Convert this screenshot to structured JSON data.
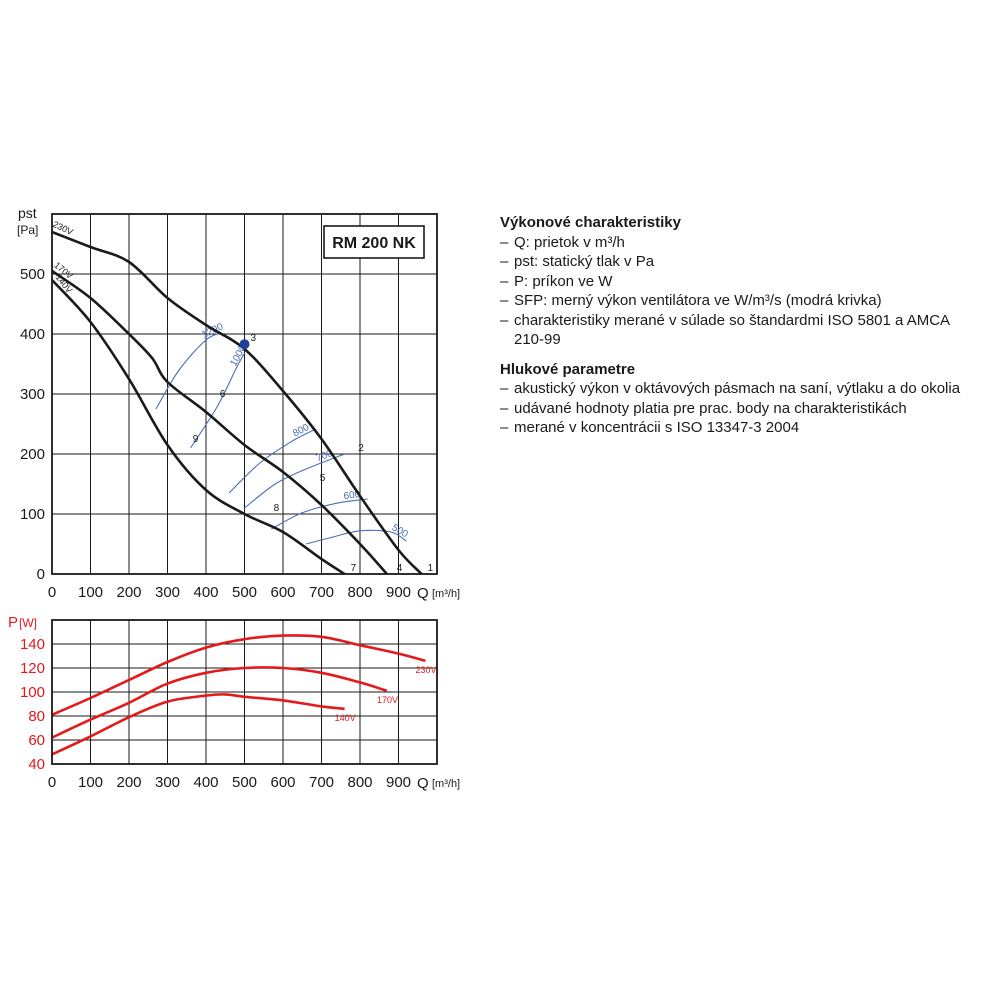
{
  "chart_data": [
    {
      "type": "line",
      "title": "RM 200 NK",
      "ylabel": "pst",
      "yunit": "[Pa]",
      "xlabel": "Q",
      "xunit": "[m³/h]",
      "xlim": [
        0,
        1000
      ],
      "ylim": [
        0,
        600
      ],
      "xticks": [
        "0",
        "100",
        "200",
        "300",
        "400",
        "500",
        "600",
        "700",
        "800",
        "900"
      ],
      "yticks": [
        "0",
        "100",
        "200",
        "300",
        "400",
        "500"
      ],
      "grid": true,
      "series": [
        {
          "name": "230V",
          "color": "#1a1a1a",
          "points": [
            [
              0,
              570
            ],
            [
              100,
              545
            ],
            [
              200,
              520
            ],
            [
              300,
              460
            ],
            [
              400,
              415
            ],
            [
              500,
              375
            ],
            [
              600,
              305
            ],
            [
              700,
              225
            ],
            [
              800,
              130
            ],
            [
              900,
              40
            ],
            [
              960,
              0
            ]
          ]
        },
        {
          "name": "170V",
          "color": "#1a1a1a",
          "points": [
            [
              0,
              505
            ],
            [
              100,
              460
            ],
            [
              200,
              400
            ],
            [
              260,
              360
            ],
            [
              300,
              320
            ],
            [
              400,
              270
            ],
            [
              500,
              215
            ],
            [
              600,
              170
            ],
            [
              700,
              115
            ],
            [
              800,
              50
            ],
            [
              870,
              0
            ]
          ]
        },
        {
          "name": "140V",
          "color": "#1a1a1a",
          "points": [
            [
              0,
              490
            ],
            [
              100,
              420
            ],
            [
              200,
              325
            ],
            [
              300,
              215
            ],
            [
              400,
              140
            ],
            [
              500,
              100
            ],
            [
              600,
              70
            ],
            [
              700,
              25
            ],
            [
              760,
              0
            ]
          ]
        }
      ],
      "sfp_curves": [
        {
          "label": "1200",
          "points": [
            [
              270,
              275
            ],
            [
              330,
              340
            ],
            [
              400,
              390
            ],
            [
              440,
              402
            ]
          ]
        },
        {
          "label": "1000",
          "points": [
            [
              360,
              210
            ],
            [
              430,
              280
            ],
            [
              480,
              345
            ],
            [
              500,
              368
            ]
          ]
        },
        {
          "label": "800",
          "points": [
            [
              460,
              135
            ],
            [
              540,
              185
            ],
            [
              620,
              220
            ],
            [
              680,
              240
            ]
          ]
        },
        {
          "label": "700",
          "points": [
            [
              500,
              110
            ],
            [
              580,
              150
            ],
            [
              660,
              175
            ],
            [
              760,
              200
            ]
          ]
        },
        {
          "label": "600",
          "points": [
            [
              570,
              75
            ],
            [
              650,
              102
            ],
            [
              740,
              118
            ],
            [
              820,
              125
            ]
          ]
        },
        {
          "label": "500",
          "points": [
            [
              660,
              50
            ],
            [
              720,
              60
            ],
            [
              800,
              72
            ],
            [
              880,
              70
            ],
            [
              920,
              55
            ]
          ]
        }
      ],
      "operating_points": [
        {
          "label": "1",
          "q": 960,
          "p": 0
        },
        {
          "label": "2",
          "q": 780,
          "p": 200
        },
        {
          "label": "3",
          "q": 500,
          "p": 383
        },
        {
          "label": "4",
          "q": 880,
          "p": 0
        },
        {
          "label": "5",
          "q": 680,
          "p": 150
        },
        {
          "label": "6",
          "q": 420,
          "p": 290
        },
        {
          "label": "7",
          "q": 760,
          "p": 0
        },
        {
          "label": "8",
          "q": 560,
          "p": 100
        },
        {
          "label": "9",
          "q": 350,
          "p": 215
        }
      ],
      "marker": {
        "label": "3",
        "q": 500,
        "p": 383,
        "color": "#1f3f9a"
      }
    },
    {
      "type": "line",
      "ylabel": "P",
      "yunit": "[W]",
      "xlabel": "Q",
      "xunit": "[m³/h]",
      "xlim": [
        0,
        1000
      ],
      "ylim": [
        40,
        160
      ],
      "xticks": [
        "0",
        "100",
        "200",
        "300",
        "400",
        "500",
        "600",
        "700",
        "800",
        "900"
      ],
      "yticks": [
        "40",
        "60",
        "80",
        "100",
        "120",
        "140"
      ],
      "grid": true,
      "series": [
        {
          "name": "230V",
          "color": "#e3191c",
          "points": [
            [
              0,
              81
            ],
            [
              100,
              95
            ],
            [
              200,
              110
            ],
            [
              300,
              125
            ],
            [
              400,
              137
            ],
            [
              500,
              144
            ],
            [
              600,
              147
            ],
            [
              700,
              146
            ],
            [
              800,
              139
            ],
            [
              900,
              132
            ],
            [
              970,
              126
            ]
          ]
        },
        {
          "name": "170V",
          "color": "#e3191c",
          "points": [
            [
              0,
              62
            ],
            [
              100,
              77
            ],
            [
              200,
              91
            ],
            [
              300,
              107
            ],
            [
              400,
              116
            ],
            [
              500,
              120
            ],
            [
              600,
              120
            ],
            [
              700,
              116
            ],
            [
              800,
              108
            ],
            [
              870,
              101
            ]
          ]
        },
        {
          "name": "140V",
          "color": "#e3191c",
          "points": [
            [
              0,
              48
            ],
            [
              100,
              63
            ],
            [
              200,
              79
            ],
            [
              300,
              92
            ],
            [
              400,
              97
            ],
            [
              450,
              98
            ],
            [
              500,
              96
            ],
            [
              600,
              93
            ],
            [
              700,
              88
            ],
            [
              760,
              86
            ]
          ]
        }
      ]
    }
  ],
  "info": {
    "section1_title": "Výkonové charakteristiky",
    "section1_items": [
      "Q: prietok v m³/h",
      "pst: statický tlak v Pa",
      "P: príkon ve W",
      "SFP: merný výkon ventilátora ve W/m³/s (modrá krivka)",
      "charakteristiky merané v súlade so štandardmi ISO 5801 a AMCA 210-99"
    ],
    "section2_title": "Hlukové parametre",
    "section2_items": [
      "akustický výkon v oktávových pásmach na saní, výtlaku a do okolia",
      "udávané hodnoty platia pre prac. body na charakteristikách",
      "merané v koncentrácii s ISO 13347-3 2004"
    ],
    "dash": "–"
  },
  "colors": {
    "grid": "#1a1a1a",
    "curve": "#1a1a1a",
    "sfp": "#4a6fb5",
    "power": "#e3191c",
    "marker": "#1f3f9a"
  }
}
